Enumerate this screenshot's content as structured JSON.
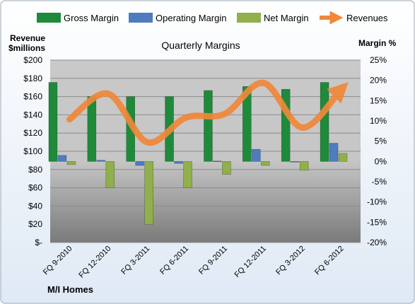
{
  "chart_data": {
    "type": "bar",
    "title": "Quarterly Margins",
    "company": "M/I Homes",
    "categories": [
      "FQ 9-2010",
      "FQ 12-2010",
      "FQ 3-2011",
      "FQ 6-2011",
      "FQ 9-2011",
      "FQ 12-2011",
      "FQ 3-2012",
      "FQ 6-2012"
    ],
    "left_axis": {
      "label_line1": "Revenue",
      "label_line2": "$millions",
      "ylim": [
        0,
        200
      ],
      "ticks": [
        "$-",
        "$20",
        "$40",
        "$60",
        "$80",
        "$100",
        "$120",
        "$140",
        "$160",
        "$180",
        "$200"
      ]
    },
    "right_axis": {
      "label": "Margin %",
      "ylim": [
        -20,
        25
      ],
      "ticks": [
        "-20%",
        "-15%",
        "-10%",
        "-5%",
        "0%",
        "5%",
        "10%",
        "15%",
        "20%",
        "25%"
      ]
    },
    "series": [
      {
        "name": "Gross Margin",
        "axis": "right",
        "kind": "bar",
        "color": "#1e8a3a",
        "values": [
          19.5,
          16.0,
          16.0,
          16.0,
          17.5,
          18.5,
          17.8,
          19.5
        ]
      },
      {
        "name": "Operating Margin",
        "axis": "right",
        "kind": "bar",
        "color": "#4f7bbf",
        "values": [
          1.5,
          0.3,
          -1.0,
          -0.5,
          0.1,
          3.0,
          0.0,
          4.5
        ]
      },
      {
        "name": "Net Margin",
        "axis": "right",
        "kind": "bar",
        "color": "#8fb04a",
        "values": [
          -0.8,
          -6.5,
          -15.5,
          -6.5,
          -3.2,
          -1.0,
          -2.2,
          2.0
        ]
      },
      {
        "name": "Revenues",
        "axis": "left",
        "kind": "line",
        "color": "#f0883a",
        "values": [
          135,
          163,
          110,
          137,
          141,
          175,
          126,
          168
        ]
      }
    ],
    "grid": true,
    "legend": "top"
  }
}
